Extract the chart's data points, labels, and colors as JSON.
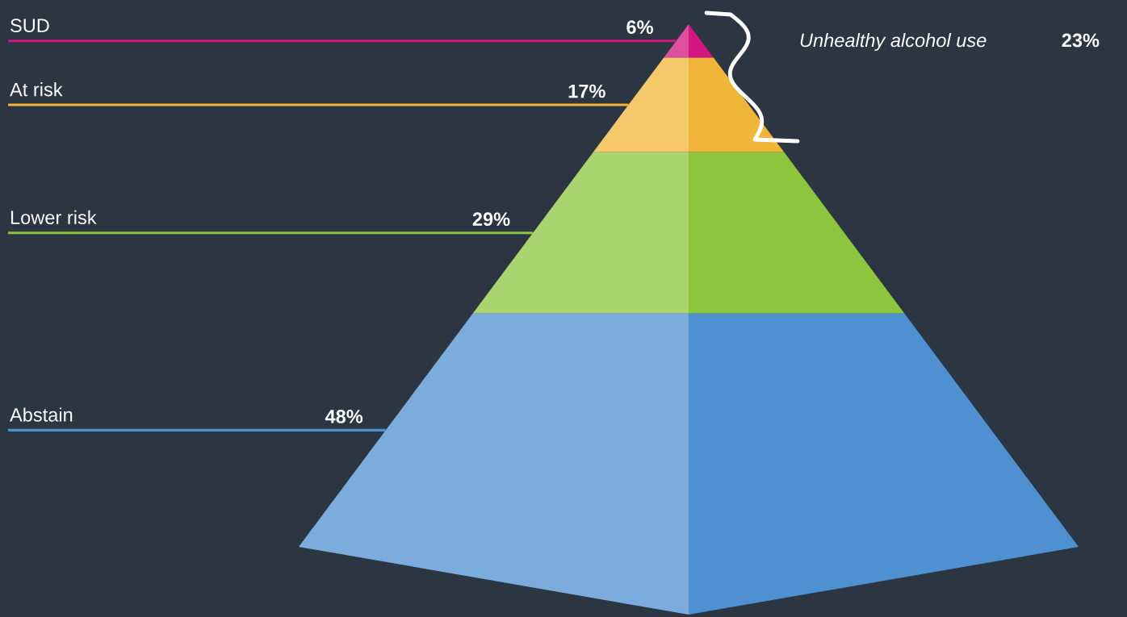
{
  "chart_data": {
    "type": "other",
    "categories": [
      "SUD",
      "At risk",
      "Lower risk",
      "Abstain"
    ],
    "values": [
      6,
      17,
      29,
      48
    ],
    "value_labels": [
      "6%",
      "17%",
      "29%",
      "48%"
    ],
    "colors": [
      "#d4147f",
      "#f0b63a",
      "#8cc63f",
      "#4f90d0"
    ],
    "annotations": [
      "Unhealthy alcohol use",
      "23%"
    ]
  }
}
